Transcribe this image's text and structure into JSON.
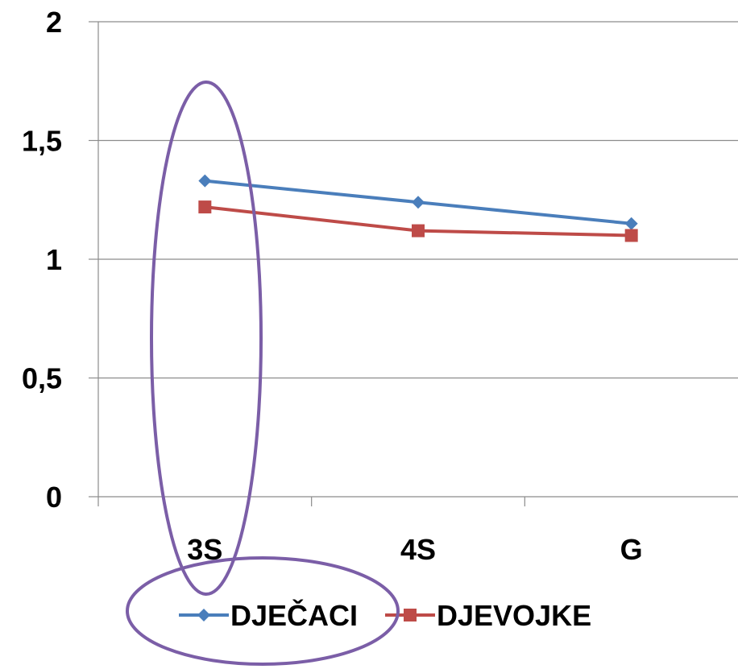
{
  "chart_data": {
    "type": "line",
    "categories": [
      "3S",
      "4S",
      "G"
    ],
    "series": [
      {
        "name": "DJEČACI",
        "values": [
          1.33,
          1.24,
          1.15
        ],
        "color": "#4A7EBB",
        "marker": "diamond"
      },
      {
        "name": "DJEVOJKE",
        "values": [
          1.22,
          1.12,
          1.1
        ],
        "color": "#BE4B48",
        "marker": "square"
      }
    ],
    "ylim": [
      0,
      2
    ],
    "y_ticks": [
      {
        "value": 0,
        "label": "0"
      },
      {
        "value": 0.5,
        "label": "0,5"
      },
      {
        "value": 1,
        "label": "1"
      },
      {
        "value": 1.5,
        "label": "1,5"
      },
      {
        "value": 2,
        "label": "2"
      }
    ],
    "grid": true,
    "legend": "bottom",
    "annotations": [
      {
        "shape": "ellipse",
        "encloses": "3S category",
        "color": "#7B5EA7"
      },
      {
        "shape": "ellipse",
        "encloses": "DJEČACI legend entry",
        "color": "#7B5EA7"
      }
    ]
  }
}
